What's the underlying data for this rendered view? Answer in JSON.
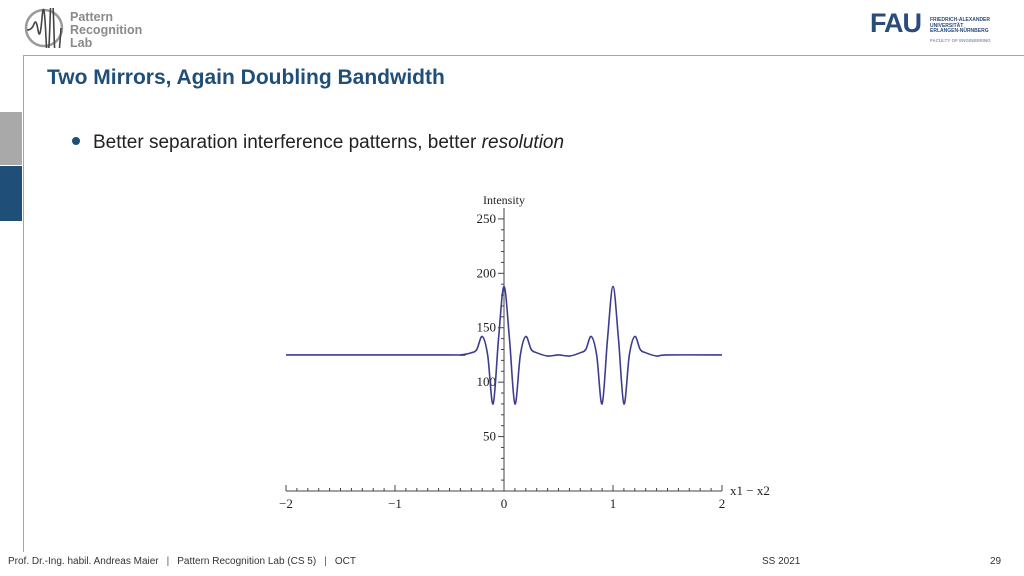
{
  "header": {
    "logo_left": {
      "line1": "Pattern",
      "line2": "Recognition",
      "line3": "Lab"
    },
    "logo_right": {
      "mark": "FAU",
      "line1": "FRIEDRICH-ALEXANDER",
      "line2": "UNIVERSITÄT",
      "line3": "ERLANGEN-NÜRNBERG",
      "faculty": "FACULTY OF ENGINEERING"
    }
  },
  "slide": {
    "title": "Two Mirrors, Again Doubling Bandwidth",
    "bullet_text": "Better separation interference patterns, better ",
    "bullet_emph": "resolution"
  },
  "chart_data": {
    "type": "line",
    "ylabel": "Intensity",
    "xlabel": "x1 − x2",
    "xlim": [
      -2,
      2
    ],
    "ylim": [
      0,
      260
    ],
    "x_ticks": [
      "−2",
      "−1",
      "0",
      "1",
      "2"
    ],
    "y_ticks": [
      "50",
      "100",
      "150",
      "200",
      "250"
    ],
    "series": [
      {
        "color": "#3d3d8f",
        "x": [
          -2,
          -0.5,
          -0.4,
          -0.3,
          -0.25,
          -0.2,
          -0.15,
          -0.1,
          -0.05,
          0,
          0.05,
          0.1,
          0.15,
          0.2,
          0.25,
          0.3,
          0.4,
          0.5,
          0.6,
          0.7,
          0.75,
          0.8,
          0.85,
          0.9,
          0.95,
          1,
          1.05,
          1.1,
          1.15,
          1.2,
          1.25,
          1.3,
          1.4,
          1.5,
          2
        ],
        "y": [
          125,
          125,
          125,
          127,
          130,
          142,
          125,
          80,
          140,
          188,
          140,
          80,
          125,
          142,
          130,
          127,
          124,
          125,
          124,
          127,
          130,
          142,
          125,
          80,
          140,
          188,
          140,
          80,
          125,
          142,
          130,
          127,
          124,
          125,
          125
        ]
      }
    ]
  },
  "footer": {
    "author": "Prof. Dr.-Ing. habil. Andreas Maier",
    "sep": "|",
    "lab": "Pattern Recognition Lab (CS 5)",
    "topic": "OCT",
    "semester": "SS 2021",
    "page": "29"
  }
}
